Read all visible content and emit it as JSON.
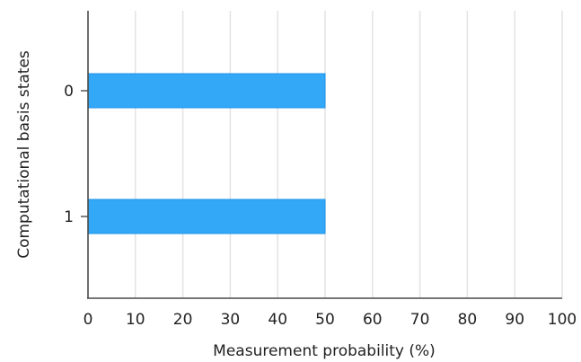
{
  "chart_data": {
    "type": "bar",
    "orientation": "horizontal",
    "categories": [
      "0",
      "1"
    ],
    "values": [
      50,
      50
    ],
    "xlabel": "Measurement probability (%)",
    "ylabel": "Computational basis states",
    "xlim": [
      0,
      100
    ],
    "xticks": [
      "0",
      "10",
      "20",
      "30",
      "40",
      "50",
      "60",
      "70",
      "80",
      "90",
      "100"
    ],
    "grid": "vertical",
    "bar_color": "#33a8f7",
    "legend": "none"
  }
}
